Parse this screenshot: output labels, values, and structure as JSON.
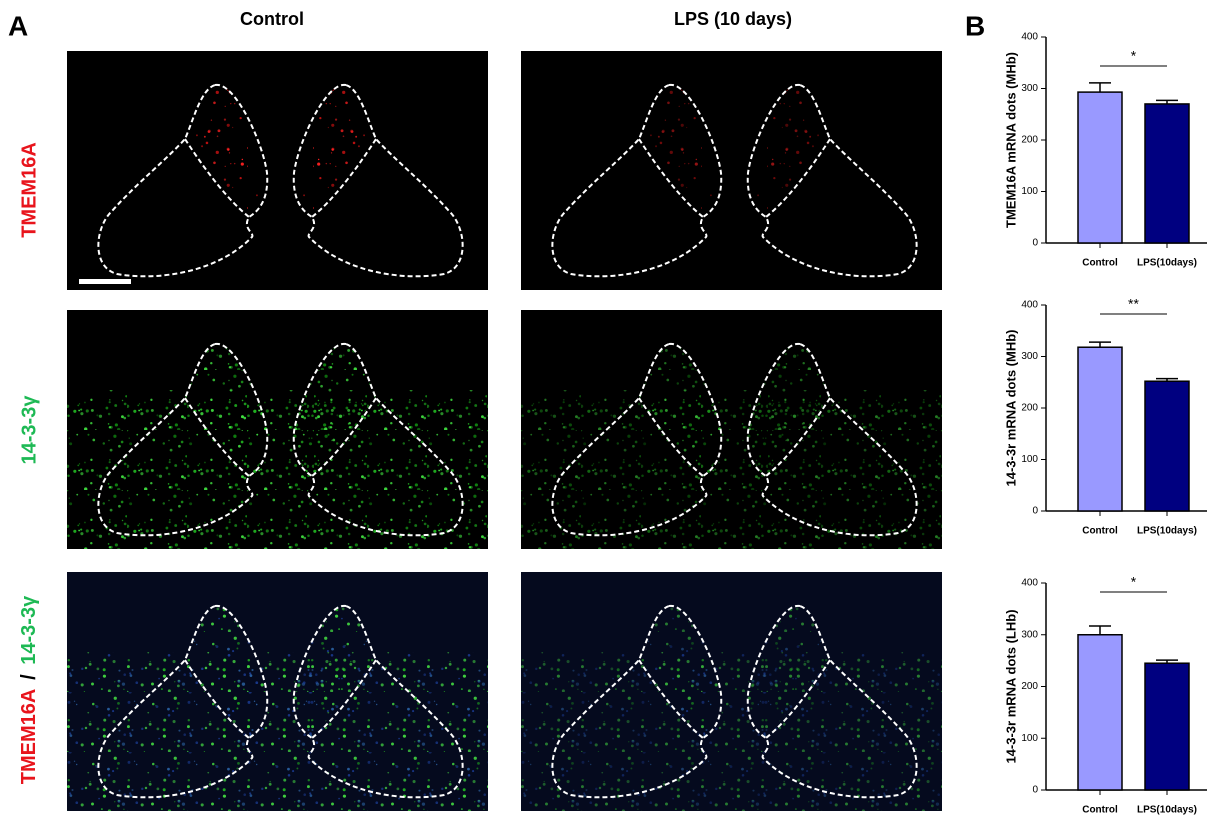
{
  "panel_a": {
    "letter": "A",
    "columns": [
      "Control",
      "LPS (10 days)"
    ],
    "rows": [
      "TMEM16A",
      "14-3-3γ"
    ],
    "merged_row": [
      "TMEM16A",
      "/",
      "14-3-3γ"
    ]
  },
  "panel_b": {
    "letter": "B"
  },
  "chart_data": [
    {
      "type": "bar",
      "ylabel": "TMEM16A mRNA dots (MHb)",
      "categories": [
        "Control",
        "LPS(10days)"
      ],
      "values": [
        293,
        270
      ],
      "errors": [
        18,
        7
      ],
      "colors": [
        "#9999ff",
        "#000080"
      ],
      "ylim": [
        0,
        400
      ],
      "yticks": [
        0,
        100,
        200,
        300,
        400
      ],
      "annotation": "*"
    },
    {
      "type": "bar",
      "ylabel": "14-3-3r mRNA dots (MHb)",
      "categories": [
        "Control",
        "LPS(10days)"
      ],
      "values": [
        318,
        252
      ],
      "errors": [
        10,
        5
      ],
      "colors": [
        "#9999ff",
        "#000080"
      ],
      "ylim": [
        0,
        400
      ],
      "yticks": [
        0,
        100,
        200,
        300,
        400
      ],
      "annotation": "**"
    },
    {
      "type": "bar",
      "ylabel": "14-3-3r mRNA dots (LHb)",
      "categories": [
        "Control",
        "LPS(10days)"
      ],
      "values": [
        300,
        245
      ],
      "errors": [
        17,
        6
      ],
      "colors": [
        "#9999ff",
        "#000080"
      ],
      "ylim": [
        0,
        400
      ],
      "yticks": [
        0,
        100,
        200,
        300,
        400
      ],
      "annotation": "*"
    }
  ]
}
